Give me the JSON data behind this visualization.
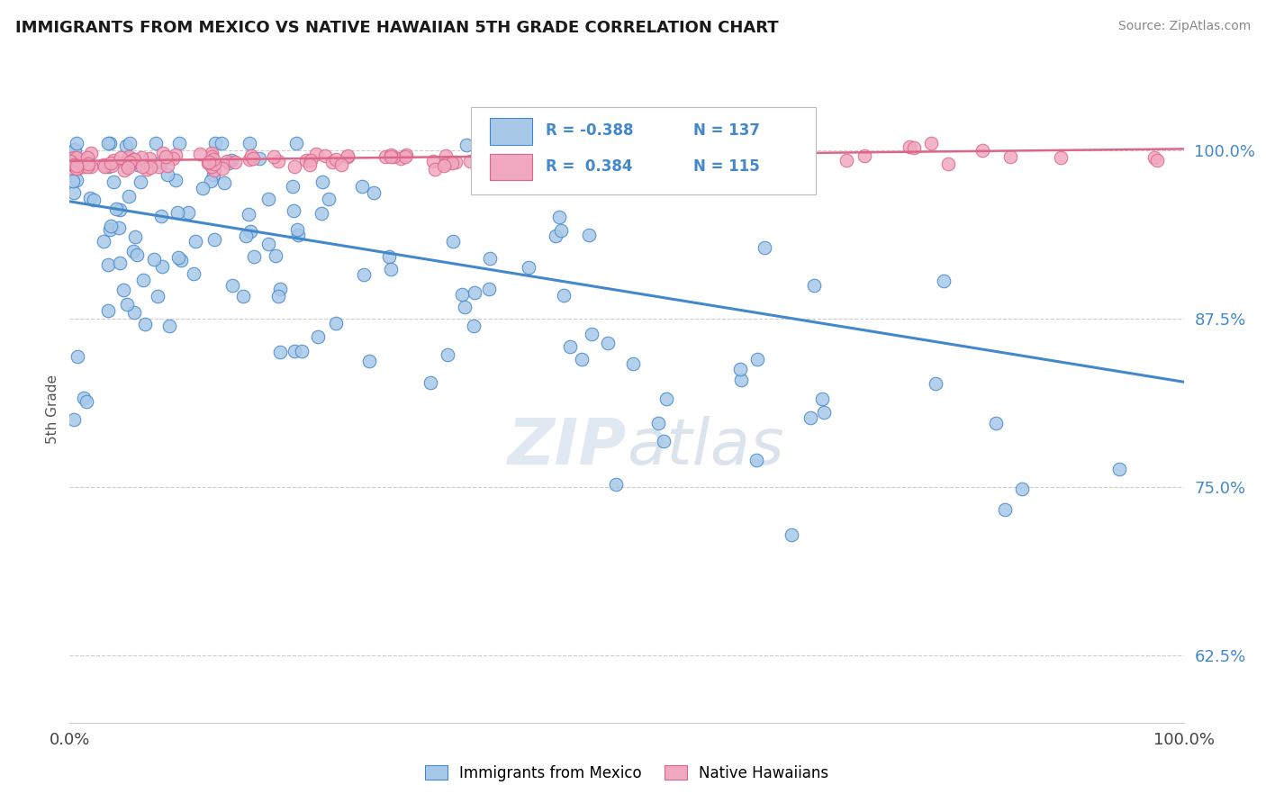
{
  "title": "IMMIGRANTS FROM MEXICO VS NATIVE HAWAIIAN 5TH GRADE CORRELATION CHART",
  "source": "Source: ZipAtlas.com",
  "ylabel": "5th Grade",
  "yticks": [
    0.625,
    0.75,
    0.875,
    1.0
  ],
  "ytick_labels": [
    "62.5%",
    "75.0%",
    "87.5%",
    "100.0%"
  ],
  "xlim": [
    0.0,
    1.0
  ],
  "ylim": [
    0.575,
    1.04
  ],
  "blue_R": "-0.388",
  "blue_N": "137",
  "pink_R": "0.384",
  "pink_N": "115",
  "blue_color": "#a8c8e8",
  "pink_color": "#f0a8c0",
  "blue_line_color": "#4488cc",
  "pink_line_color": "#dd6688",
  "legend_blue_label": "Immigrants from Mexico",
  "legend_pink_label": "Native Hawaiians",
  "blue_line_start_y": 0.962,
  "blue_line_end_y": 0.828,
  "pink_line_start_y": 0.992,
  "pink_line_end_y": 1.001
}
